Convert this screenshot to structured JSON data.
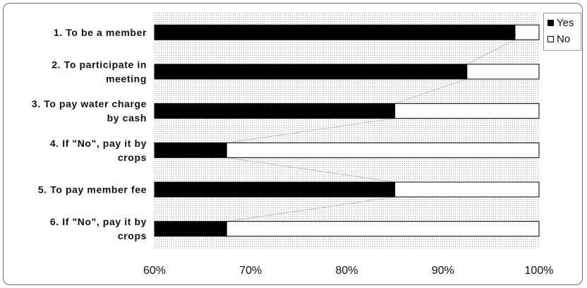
{
  "chart_data": {
    "type": "bar",
    "orientation": "horizontal",
    "stacked": "100%",
    "categories": [
      "1. To be a member",
      "2. To participate in meeting",
      "3. To pay water charge by cash",
      "4. If \"No\", pay it by crops",
      "5. To pay member fee",
      "6. If \"No\", pay it by crops"
    ],
    "category_lines": [
      [
        "1. To be a member"
      ],
      [
        "2. To participate in",
        "meeting"
      ],
      [
        "3. To pay water charge",
        "by cash"
      ],
      [
        "4. If \"No\", pay it by",
        "crops"
      ],
      [
        "5. To pay member fee"
      ],
      [
        "6. If \"No\", pay it by",
        "crops"
      ]
    ],
    "series": [
      {
        "name": "Yes",
        "values": [
          97.5,
          92.5,
          85,
          67.5,
          85,
          67.5
        ],
        "color": "#000000"
      },
      {
        "name": "No",
        "values": [
          2.5,
          7.5,
          15,
          32.5,
          15,
          32.5
        ],
        "color": "#ffffff"
      }
    ],
    "xlim": [
      60,
      100
    ],
    "xticks": [
      "60%",
      "70%",
      "80%",
      "90%",
      "100%"
    ],
    "xtick_values": [
      60,
      70,
      80,
      90,
      100
    ],
    "series_lines": true,
    "grid": true,
    "legend_position": "right"
  }
}
